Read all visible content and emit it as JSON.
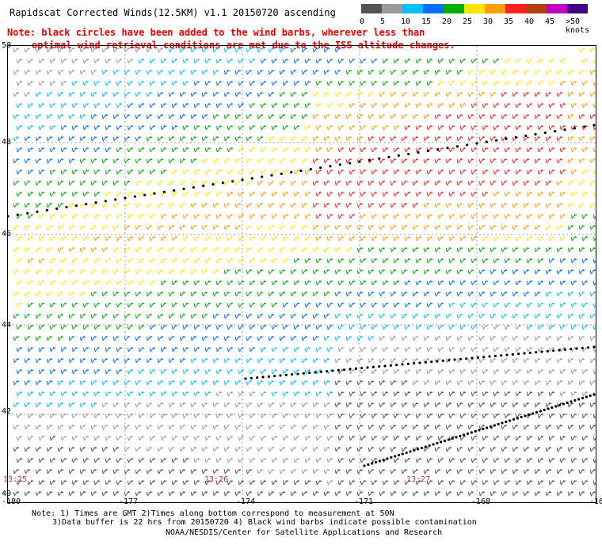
{
  "title": "Rapidscat Corrected Winds(12.5KM) v1.1 20150720 ascending",
  "note_line1": "Note: black circles have been added to the wind barbs, wherever less than",
  "note_line2": "optimal wind retrieval conditions are met due to the ISS altitude changes.",
  "legend": {
    "labels": [
      "0",
      "5",
      "10",
      "15",
      "20",
      "25",
      "30",
      "35",
      "40",
      "45",
      ">50 knots"
    ],
    "colors": [
      "#555555",
      "#9a9a9a",
      "#00c0ff",
      "#0070ff",
      "#00b000",
      "#ffe600",
      "#ffa000",
      "#ff2020",
      "#b04010",
      "#c000c0",
      "#400080"
    ]
  },
  "map": {
    "y_labels": [
      "50",
      "48",
      "46",
      "44",
      "42",
      "40"
    ],
    "x_labels": [
      "-180",
      "-177",
      "-174",
      "-171",
      "-168",
      "-16"
    ],
    "times": [
      "13:25",
      "13:26",
      "13:27"
    ]
  },
  "footer": {
    "line1": "Note: 1) Times are GMT 2)Times along bottom correspond to measurement at 50N",
    "line2": "3)Data buffer is 22 hrs from 20150720 4) Black wind barbs indicate possible contamination",
    "credit": "NOAA/NESDIS/Center for Satellite Applications and Research"
  }
}
